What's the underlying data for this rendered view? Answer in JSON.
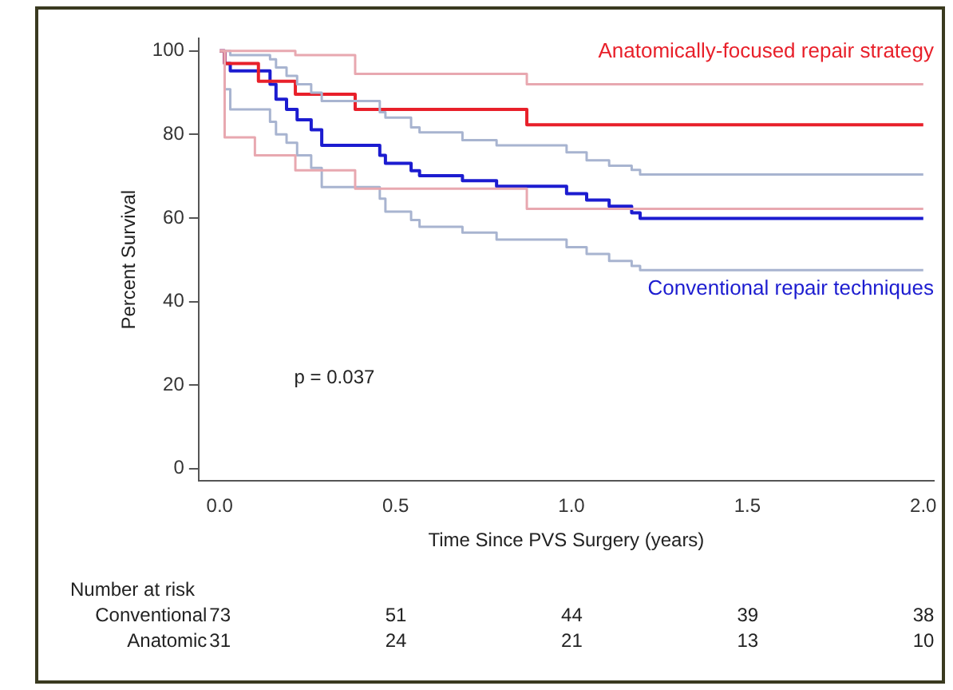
{
  "chart_data": {
    "type": "step",
    "xlabel": "Time Since PVS Surgery (years)",
    "ylabel": "Percent Survival",
    "xlim": [
      -0.06,
      2.03
    ],
    "ylim": [
      -3,
      103
    ],
    "xticks": [
      {
        "value": 0,
        "label": "0.0"
      },
      {
        "value": 0.5,
        "label": "0.5"
      },
      {
        "value": 1,
        "label": "1.0"
      },
      {
        "value": 1.5,
        "label": "1.5"
      },
      {
        "value": 2,
        "label": "2.0"
      }
    ],
    "yticks": [
      0,
      20,
      40,
      60,
      80,
      100
    ],
    "grid": false,
    "legend": false,
    "marker": "none",
    "line_style": "solid",
    "series": [
      {
        "color": "#e8a8b0",
        "x": [
          0,
          0.014,
          0.1,
          0.11,
          0.215,
          0.385,
          0.873,
          2.0
        ],
        "values": [
          100,
          100,
          100,
          100,
          99,
          94.5,
          92,
          92
        ]
      },
      {
        "color": "#e8a8b0",
        "x": [
          0,
          0.014,
          0.1,
          0.11,
          0.215,
          0.385,
          0.873,
          2.0
        ],
        "values": [
          100,
          79.3,
          75,
          75,
          71.4,
          67,
          62.2,
          62.2
        ]
      },
      {
        "color": "#a8b4d0",
        "x": [
          0,
          0.014,
          0.03,
          0.143,
          0.16,
          0.19,
          0.22,
          0.26,
          0.29,
          0.455,
          0.471,
          0.544,
          0.568,
          0.69,
          0.787,
          0.986,
          1.043,
          1.107,
          1.171,
          1.195,
          2.0
        ],
        "values": [
          100,
          100,
          99,
          98,
          96,
          94,
          92,
          90,
          88,
          85.3,
          84,
          81.7,
          80.5,
          78.6,
          77.4,
          75.7,
          73.8,
          72.5,
          71.5,
          70.4,
          70.4
        ]
      },
      {
        "color": "#a8b4d0",
        "x": [
          0,
          0.014,
          0.03,
          0.143,
          0.16,
          0.19,
          0.22,
          0.26,
          0.29,
          0.455,
          0.471,
          0.544,
          0.568,
          0.69,
          0.787,
          0.986,
          1.043,
          1.107,
          1.171,
          1.195,
          2.0
        ],
        "values": [
          100,
          90.8,
          86,
          83,
          80,
          78,
          75,
          72,
          67.4,
          64.6,
          61.5,
          59.5,
          57.9,
          56.5,
          54.8,
          53,
          51.4,
          49.7,
          48.5,
          47.5,
          47.5
        ]
      },
      {
        "name": "Anatomically-focused repair strategy",
        "color": "#e8202a",
        "x": [
          0,
          0.014,
          0.1,
          0.11,
          0.215,
          0.385,
          0.873,
          2.0
        ],
        "values": [
          100,
          97,
          97,
          92.7,
          89.6,
          86,
          82.3,
          82.3
        ]
      },
      {
        "name": "Conventional repair techniques",
        "color": "#1c1cd0",
        "x": [
          0,
          0.014,
          0.03,
          0.143,
          0.16,
          0.19,
          0.22,
          0.26,
          0.29,
          0.455,
          0.471,
          0.544,
          0.568,
          0.69,
          0.787,
          0.986,
          1.043,
          1.107,
          1.171,
          1.195,
          2.0
        ],
        "values": [
          100,
          97,
          95.2,
          92,
          88.4,
          86,
          83.5,
          81.1,
          77.4,
          75,
          73.1,
          71.3,
          70.1,
          68.9,
          67.6,
          65.8,
          64.3,
          62.8,
          61.2,
          59.9,
          59.9
        ]
      }
    ],
    "annotations": [
      "p = 0.037",
      "Number at risk",
      "Conventional",
      "73",
      "51",
      "44",
      "39",
      "38",
      "Anatomic",
      "31",
      "24",
      "21",
      "13",
      "10"
    ]
  }
}
